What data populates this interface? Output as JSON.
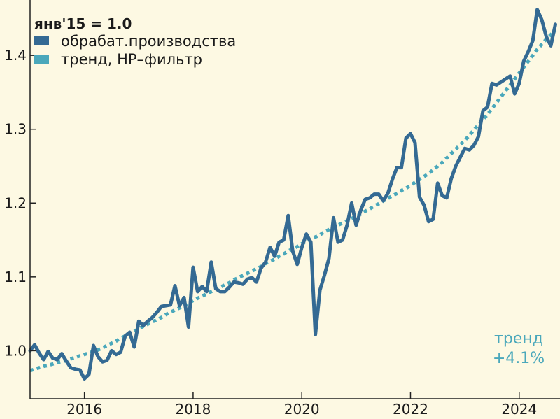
{
  "chart_data": {
    "type": "line",
    "title": "",
    "xlabel": "",
    "ylabel": "",
    "xlim": [
      2015.0,
      2024.75
    ],
    "ylim": [
      0.935,
      1.475
    ],
    "x_ticks": [
      2016,
      2018,
      2020,
      2022,
      2024
    ],
    "x_tick_labels": [
      "2016",
      "2018",
      "2020",
      "2022",
      "2024"
    ],
    "y_ticks": [
      1.0,
      1.1,
      1.2,
      1.3,
      1.4
    ],
    "y_tick_labels": [
      "1.0",
      "1.1",
      "1.2",
      "1.3",
      "1.4"
    ],
    "grid": false,
    "legend": {
      "position": "top-left",
      "title": "янв'15 = 1.0",
      "entries": [
        "обрабат.производства",
        "тренд, HP–фильтр"
      ]
    },
    "annotation": {
      "line1": "тренд",
      "line2": "+4.1%",
      "position": "bottom-right",
      "color": "#4aa8bb"
    },
    "colors": {
      "background": "#fdf9e3",
      "series_main": "#346a93",
      "series_trend": "#4aa8bb",
      "axis": "#222222"
    },
    "series": [
      {
        "name": "обрабат.производства",
        "style": "solid",
        "x_start": 2015.0,
        "x_step": 0.08333,
        "values": [
          1.0,
          1.008,
          0.997,
          0.988,
          0.999,
          0.99,
          0.988,
          0.996,
          0.986,
          0.977,
          0.975,
          0.974,
          0.962,
          0.968,
          1.007,
          0.992,
          0.985,
          0.987,
          1.0,
          0.995,
          0.998,
          1.02,
          1.025,
          1.005,
          1.04,
          1.034,
          1.04,
          1.045,
          1.052,
          1.06,
          1.061,
          1.062,
          1.088,
          1.061,
          1.072,
          1.032,
          1.113,
          1.08,
          1.087,
          1.08,
          1.12,
          1.084,
          1.08,
          1.08,
          1.086,
          1.093,
          1.092,
          1.09,
          1.097,
          1.099,
          1.093,
          1.112,
          1.12,
          1.14,
          1.128,
          1.147,
          1.15,
          1.183,
          1.135,
          1.117,
          1.14,
          1.158,
          1.147,
          1.022,
          1.082,
          1.102,
          1.125,
          1.18,
          1.147,
          1.15,
          1.17,
          1.2,
          1.17,
          1.19,
          1.205,
          1.207,
          1.212,
          1.212,
          1.203,
          1.213,
          1.232,
          1.248,
          1.248,
          1.288,
          1.294,
          1.282,
          1.208,
          1.197,
          1.175,
          1.178,
          1.227,
          1.21,
          1.207,
          1.233,
          1.25,
          1.262,
          1.274,
          1.272,
          1.278,
          1.29,
          1.325,
          1.33,
          1.362,
          1.36,
          1.364,
          1.368,
          1.372,
          1.348,
          1.362,
          1.392,
          1.405,
          1.42,
          1.462,
          1.448,
          1.425,
          1.413,
          1.442
        ]
      },
      {
        "name": "тренд, HP–фильтр",
        "style": "dotted",
        "x_start": 2015.0,
        "x_step": 0.08333,
        "values": [
          0.973,
          0.975,
          0.977,
          0.979,
          0.98,
          0.982,
          0.984,
          0.985,
          0.987,
          0.989,
          0.991,
          0.993,
          0.995,
          0.997,
          0.999,
          1.001,
          1.004,
          1.007,
          1.01,
          1.013,
          1.017,
          1.02,
          1.023,
          1.026,
          1.03,
          1.033,
          1.036,
          1.039,
          1.042,
          1.045,
          1.049,
          1.052,
          1.055,
          1.058,
          1.061,
          1.064,
          1.068,
          1.071,
          1.074,
          1.077,
          1.08,
          1.083,
          1.086,
          1.089,
          1.092,
          1.096,
          1.099,
          1.102,
          1.105,
          1.108,
          1.111,
          1.114,
          1.118,
          1.121,
          1.124,
          1.128,
          1.131,
          1.135,
          1.138,
          1.141,
          1.145,
          1.148,
          1.151,
          1.154,
          1.157,
          1.161,
          1.164,
          1.167,
          1.17,
          1.173,
          1.176,
          1.179,
          1.182,
          1.185,
          1.189,
          1.192,
          1.196,
          1.199,
          1.203,
          1.206,
          1.21,
          1.213,
          1.217,
          1.22,
          1.224,
          1.228,
          1.232,
          1.236,
          1.24,
          1.245,
          1.25,
          1.255,
          1.261,
          1.267,
          1.273,
          1.279,
          1.285,
          1.292,
          1.299,
          1.306,
          1.313,
          1.32,
          1.328,
          1.336,
          1.344,
          1.352,
          1.36,
          1.368,
          1.376,
          1.384,
          1.392,
          1.4,
          1.408,
          1.415,
          1.422,
          1.428,
          1.434
        ]
      }
    ]
  }
}
